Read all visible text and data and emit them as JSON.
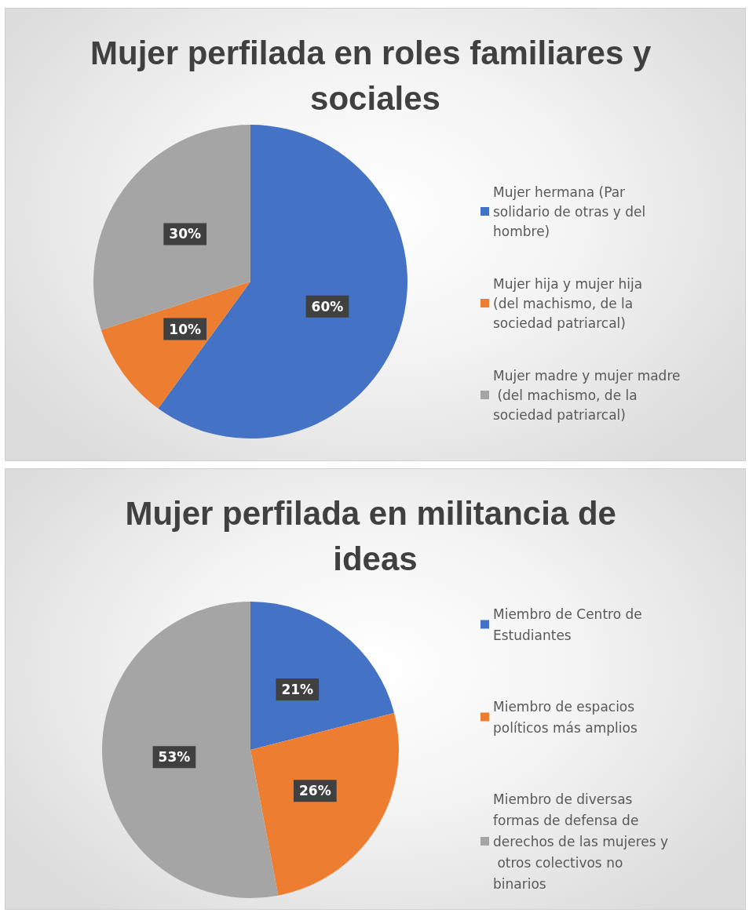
{
  "chart_data": [
    {
      "type": "pie",
      "title": "Mujer perfilada en roles familiares y sociales",
      "categories": [
        "Mujer hermana (Par solidario de otras y del hombre)",
        "Mujer hija y mujer hija (del machismo, de la sociedad patriarcal)",
        "Mujer madre y mujer madre (del machismo, de la sociedad patriarcal)"
      ],
      "values": [
        60,
        10,
        30
      ],
      "colors": [
        "#4472c4",
        "#ed7d31",
        "#a5a5a5"
      ],
      "value_labels": [
        "60%",
        "10%",
        "30%"
      ],
      "legend": "right"
    },
    {
      "type": "pie",
      "title": "Mujer perfilada en militancia de ideas",
      "categories": [
        "Miembro de Centro de Estudiantes",
        "Miembro de espacios políticos más amplios",
        "Miembro de diversas formas de defensa de derechos de las mujeres y otros colectivos no binarios"
      ],
      "values": [
        21,
        26,
        53
      ],
      "colors": [
        "#4472c4",
        "#ed7d31",
        "#a5a5a5"
      ],
      "value_labels": [
        "21%",
        "26%",
        "53%"
      ],
      "legend": "right"
    }
  ]
}
